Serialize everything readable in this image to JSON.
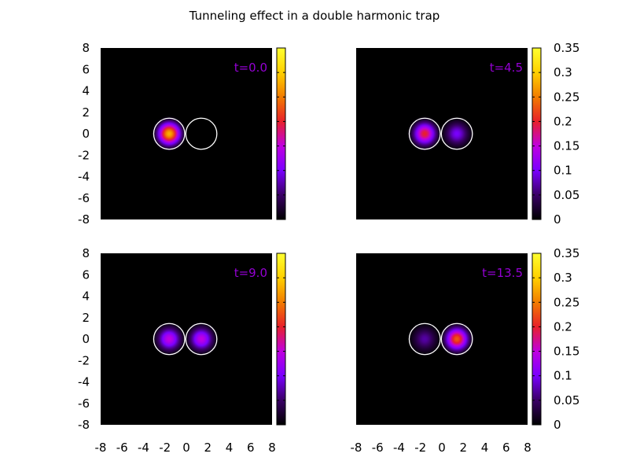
{
  "chart_data": {
    "type": "heatmap",
    "title": "Tunneling effect in a double harmonic trap",
    "xlim": [
      -8,
      8
    ],
    "ylim": [
      -8,
      8
    ],
    "x_ticks": [
      "-8",
      "-6",
      "-4",
      "-2",
      "0",
      "2",
      "4",
      "6",
      "8"
    ],
    "y_ticks": [
      "8",
      "6",
      "4",
      "2",
      "0",
      "-2",
      "-4",
      "-6",
      "-8"
    ],
    "colorbar": {
      "range": [
        0,
        0.35
      ],
      "ticks": [
        "0.35",
        "0.3",
        "0.25",
        "0.2",
        "0.15",
        "0.1",
        "0.05",
        "0"
      ],
      "palette": [
        "#000000",
        "#3a0066",
        "#7a00ff",
        "#c000e0",
        "#e8202a",
        "#f27c00",
        "#ffd000",
        "#ffff30"
      ]
    },
    "wells": [
      {
        "cx": -1.6,
        "cy": 0,
        "r": 1.45
      },
      {
        "cx": 1.4,
        "cy": 0,
        "r": 1.45
      }
    ],
    "label_color": "#9400d3",
    "panels": [
      {
        "label": "t=0.0",
        "peak_left": 0.28,
        "peak_right": 0.0
      },
      {
        "label": "t=4.5",
        "peak_left": 0.2,
        "peak_right": 0.1
      },
      {
        "label": "t=9.0",
        "peak_left": 0.15,
        "peak_right": 0.15
      },
      {
        "label": "t=13.5",
        "peak_left": 0.07,
        "peak_right": 0.23
      }
    ]
  }
}
